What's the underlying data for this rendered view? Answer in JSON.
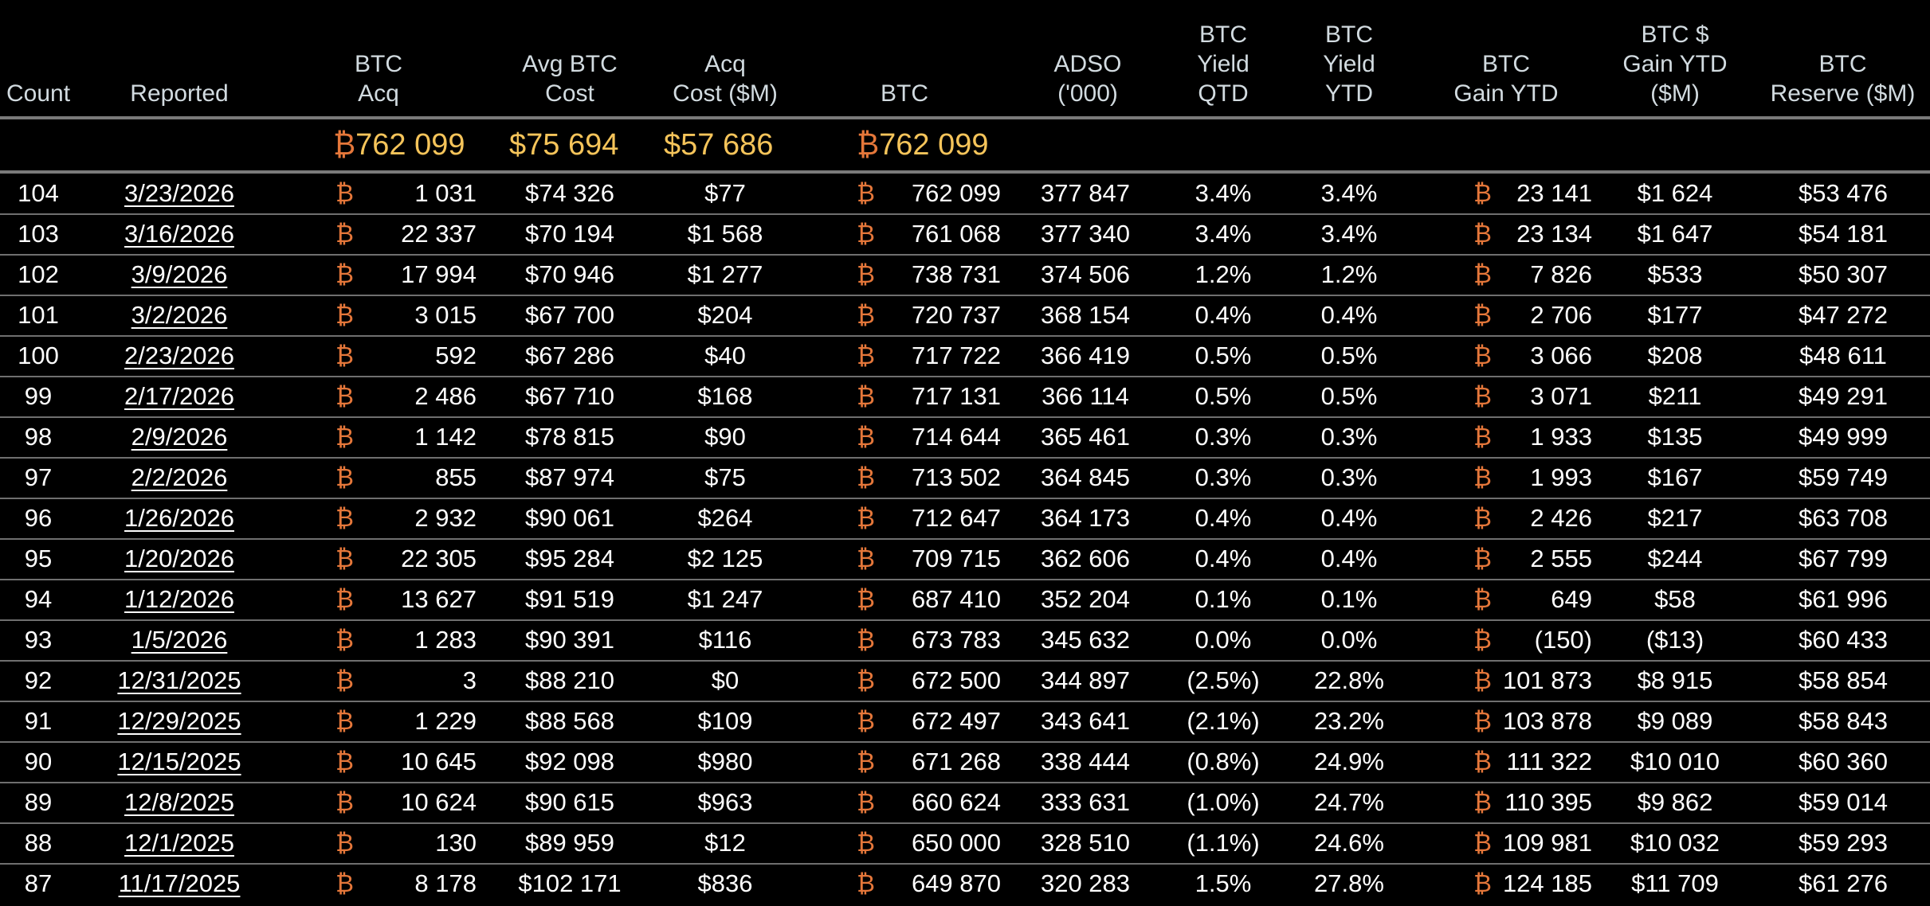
{
  "colors": {
    "background": "#000000",
    "header_text": "#d2dbe0",
    "totals_text": "#f5c45a",
    "btc_symbol": "#e5773a",
    "cell_text": "#ffffff",
    "divider": "#7a7a7a"
  },
  "btc_symbol": "₿",
  "columns": [
    {
      "key": "count",
      "label": "Count"
    },
    {
      "key": "reported",
      "label": "Reported"
    },
    {
      "key": "btc_acq",
      "label": "BTC\nAcq"
    },
    {
      "key": "avg_cost",
      "label": "Avg BTC\nCost"
    },
    {
      "key": "acq_cost",
      "label": "Acq\nCost ($M)"
    },
    {
      "key": "btc",
      "label": "BTC"
    },
    {
      "key": "adso",
      "label": "ADSO\n('000)"
    },
    {
      "key": "yield_qtd",
      "label": "BTC\nYield\nQTD"
    },
    {
      "key": "yield_ytd",
      "label": "BTC\nYield\nYTD"
    },
    {
      "key": "gain_ytd",
      "label": "BTC\nGain YTD"
    },
    {
      "key": "usd_gain_ytd",
      "label": "BTC $\nGain YTD\n($M)"
    },
    {
      "key": "reserve",
      "label": "BTC\nReserve ($M)"
    }
  ],
  "totals": {
    "btc_acq": "762 099",
    "avg_cost": "$75 694",
    "acq_cost": "$57 686",
    "btc": "762 099"
  },
  "rows": [
    {
      "count": "104",
      "reported": "3/23/2026",
      "btc_acq": "1 031",
      "avg_cost": "$74 326",
      "acq_cost": "$77",
      "btc": "762 099",
      "adso": "377 847",
      "yield_qtd": "3.4%",
      "yield_ytd": "3.4%",
      "gain_ytd": "23 141",
      "usd_gain_ytd": "$1 624",
      "reserve": "$53 476"
    },
    {
      "count": "103",
      "reported": "3/16/2026",
      "btc_acq": "22 337",
      "avg_cost": "$70 194",
      "acq_cost": "$1 568",
      "btc": "761 068",
      "adso": "377 340",
      "yield_qtd": "3.4%",
      "yield_ytd": "3.4%",
      "gain_ytd": "23 134",
      "usd_gain_ytd": "$1 647",
      "reserve": "$54 181"
    },
    {
      "count": "102",
      "reported": "3/9/2026",
      "btc_acq": "17 994",
      "avg_cost": "$70 946",
      "acq_cost": "$1 277",
      "btc": "738 731",
      "adso": "374 506",
      "yield_qtd": "1.2%",
      "yield_ytd": "1.2%",
      "gain_ytd": "7 826",
      "usd_gain_ytd": "$533",
      "reserve": "$50 307"
    },
    {
      "count": "101",
      "reported": "3/2/2026",
      "btc_acq": "3 015",
      "avg_cost": "$67 700",
      "acq_cost": "$204",
      "btc": "720 737",
      "adso": "368 154",
      "yield_qtd": "0.4%",
      "yield_ytd": "0.4%",
      "gain_ytd": "2 706",
      "usd_gain_ytd": "$177",
      "reserve": "$47 272"
    },
    {
      "count": "100",
      "reported": "2/23/2026",
      "btc_acq": "592",
      "avg_cost": "$67 286",
      "acq_cost": "$40",
      "btc": "717 722",
      "adso": "366 419",
      "yield_qtd": "0.5%",
      "yield_ytd": "0.5%",
      "gain_ytd": "3 066",
      "usd_gain_ytd": "$208",
      "reserve": "$48 611"
    },
    {
      "count": "99",
      "reported": "2/17/2026",
      "btc_acq": "2 486",
      "avg_cost": "$67 710",
      "acq_cost": "$168",
      "btc": "717 131",
      "adso": "366 114",
      "yield_qtd": "0.5%",
      "yield_ytd": "0.5%",
      "gain_ytd": "3 071",
      "usd_gain_ytd": "$211",
      "reserve": "$49 291"
    },
    {
      "count": "98",
      "reported": "2/9/2026",
      "btc_acq": "1 142",
      "avg_cost": "$78 815",
      "acq_cost": "$90",
      "btc": "714 644",
      "adso": "365 461",
      "yield_qtd": "0.3%",
      "yield_ytd": "0.3%",
      "gain_ytd": "1 933",
      "usd_gain_ytd": "$135",
      "reserve": "$49 999"
    },
    {
      "count": "97",
      "reported": "2/2/2026",
      "btc_acq": "855",
      "avg_cost": "$87 974",
      "acq_cost": "$75",
      "btc": "713 502",
      "adso": "364 845",
      "yield_qtd": "0.3%",
      "yield_ytd": "0.3%",
      "gain_ytd": "1 993",
      "usd_gain_ytd": "$167",
      "reserve": "$59 749"
    },
    {
      "count": "96",
      "reported": "1/26/2026",
      "btc_acq": "2 932",
      "avg_cost": "$90 061",
      "acq_cost": "$264",
      "btc": "712 647",
      "adso": "364 173",
      "yield_qtd": "0.4%",
      "yield_ytd": "0.4%",
      "gain_ytd": "2 426",
      "usd_gain_ytd": "$217",
      "reserve": "$63 708"
    },
    {
      "count": "95",
      "reported": "1/20/2026",
      "btc_acq": "22 305",
      "avg_cost": "$95 284",
      "acq_cost": "$2 125",
      "btc": "709 715",
      "adso": "362 606",
      "yield_qtd": "0.4%",
      "yield_ytd": "0.4%",
      "gain_ytd": "2 555",
      "usd_gain_ytd": "$244",
      "reserve": "$67 799"
    },
    {
      "count": "94",
      "reported": "1/12/2026",
      "btc_acq": "13 627",
      "avg_cost": "$91 519",
      "acq_cost": "$1 247",
      "btc": "687 410",
      "adso": "352 204",
      "yield_qtd": "0.1%",
      "yield_ytd": "0.1%",
      "gain_ytd": "649",
      "usd_gain_ytd": "$58",
      "reserve": "$61 996"
    },
    {
      "count": "93",
      "reported": "1/5/2026",
      "btc_acq": "1 283",
      "avg_cost": "$90 391",
      "acq_cost": "$116",
      "btc": "673 783",
      "adso": "345 632",
      "yield_qtd": "0.0%",
      "yield_ytd": "0.0%",
      "gain_ytd": "(150)",
      "usd_gain_ytd": "($13)",
      "reserve": "$60 433"
    },
    {
      "count": "92",
      "reported": "12/31/2025",
      "btc_acq": "3",
      "avg_cost": "$88 210",
      "acq_cost": "$0",
      "btc": "672 500",
      "adso": "344 897",
      "yield_qtd": "(2.5%)",
      "yield_ytd": "22.8%",
      "gain_ytd": "101 873",
      "usd_gain_ytd": "$8 915",
      "reserve": "$58 854"
    },
    {
      "count": "91",
      "reported": "12/29/2025",
      "btc_acq": "1 229",
      "avg_cost": "$88 568",
      "acq_cost": "$109",
      "btc": "672 497",
      "adso": "343 641",
      "yield_qtd": "(2.1%)",
      "yield_ytd": "23.2%",
      "gain_ytd": "103 878",
      "usd_gain_ytd": "$9 089",
      "reserve": "$58 843"
    },
    {
      "count": "90",
      "reported": "12/15/2025",
      "btc_acq": "10 645",
      "avg_cost": "$92 098",
      "acq_cost": "$980",
      "btc": "671 268",
      "adso": "338 444",
      "yield_qtd": "(0.8%)",
      "yield_ytd": "24.9%",
      "gain_ytd": "111 322",
      "usd_gain_ytd": "$10 010",
      "reserve": "$60 360"
    },
    {
      "count": "89",
      "reported": "12/8/2025",
      "btc_acq": "10 624",
      "avg_cost": "$90 615",
      "acq_cost": "$963",
      "btc": "660 624",
      "adso": "333 631",
      "yield_qtd": "(1.0%)",
      "yield_ytd": "24.7%",
      "gain_ytd": "110 395",
      "usd_gain_ytd": "$9 862",
      "reserve": "$59 014"
    },
    {
      "count": "88",
      "reported": "12/1/2025",
      "btc_acq": "130",
      "avg_cost": "$89 959",
      "acq_cost": "$12",
      "btc": "650 000",
      "adso": "328 510",
      "yield_qtd": "(1.1%)",
      "yield_ytd": "24.6%",
      "gain_ytd": "109 981",
      "usd_gain_ytd": "$10 032",
      "reserve": "$59 293"
    },
    {
      "count": "87",
      "reported": "11/17/2025",
      "btc_acq": "8 178",
      "avg_cost": "$102 171",
      "acq_cost": "$836",
      "btc": "649 870",
      "adso": "320 283",
      "yield_qtd": "1.5%",
      "yield_ytd": "27.8%",
      "gain_ytd": "124 185",
      "usd_gain_ytd": "$11 709",
      "reserve": "$61 276"
    }
  ]
}
